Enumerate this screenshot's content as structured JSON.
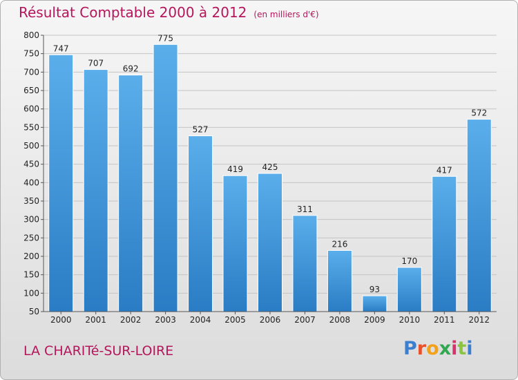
{
  "chart_data": {
    "type": "bar",
    "title": "Résultat Comptable 2000 à 2012",
    "subtitle": "(en milliers d'€)",
    "categories": [
      "2000",
      "2001",
      "2002",
      "2003",
      "2004",
      "2005",
      "2006",
      "2007",
      "2008",
      "2009",
      "2010",
      "2011",
      "2012"
    ],
    "values": [
      747,
      707,
      692,
      775,
      527,
      419,
      425,
      311,
      216,
      93,
      170,
      417,
      572
    ],
    "ylim": [
      50,
      800
    ],
    "yticks": [
      50,
      100,
      150,
      200,
      250,
      300,
      350,
      400,
      450,
      500,
      550,
      600,
      650,
      700,
      750,
      800
    ],
    "grid": true,
    "bar_color": "#4a9ee0",
    "bar_color_dark": "#2a7cc4"
  },
  "footer": {
    "place": "LA CHARITé-SUR-LOIRE",
    "logo": "Proxiti",
    "logo_colors": [
      "#3a7fd0",
      "#e8502a",
      "#f4a11a",
      "#2fa84f",
      "#d6336c",
      "#8bc43f",
      "#3a7fd0"
    ]
  }
}
